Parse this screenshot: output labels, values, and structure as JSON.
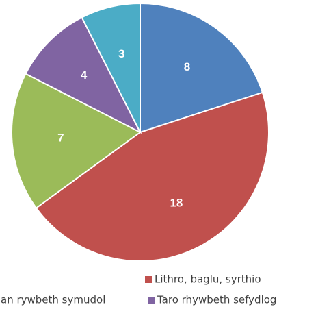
{
  "chart_data": {
    "type": "pie",
    "categories": [
      null,
      "Lithro, baglu, syrthio",
      "an rywbeth symudol",
      "Taro rhywbeth sefydlog",
      null
    ],
    "values": [
      8,
      18,
      7,
      4,
      3
    ],
    "colors": [
      "#4f81bd",
      "#c0504d",
      "#9bbb59",
      "#8064a2",
      "#4bacc6"
    ],
    "legend": "bottom"
  }
}
